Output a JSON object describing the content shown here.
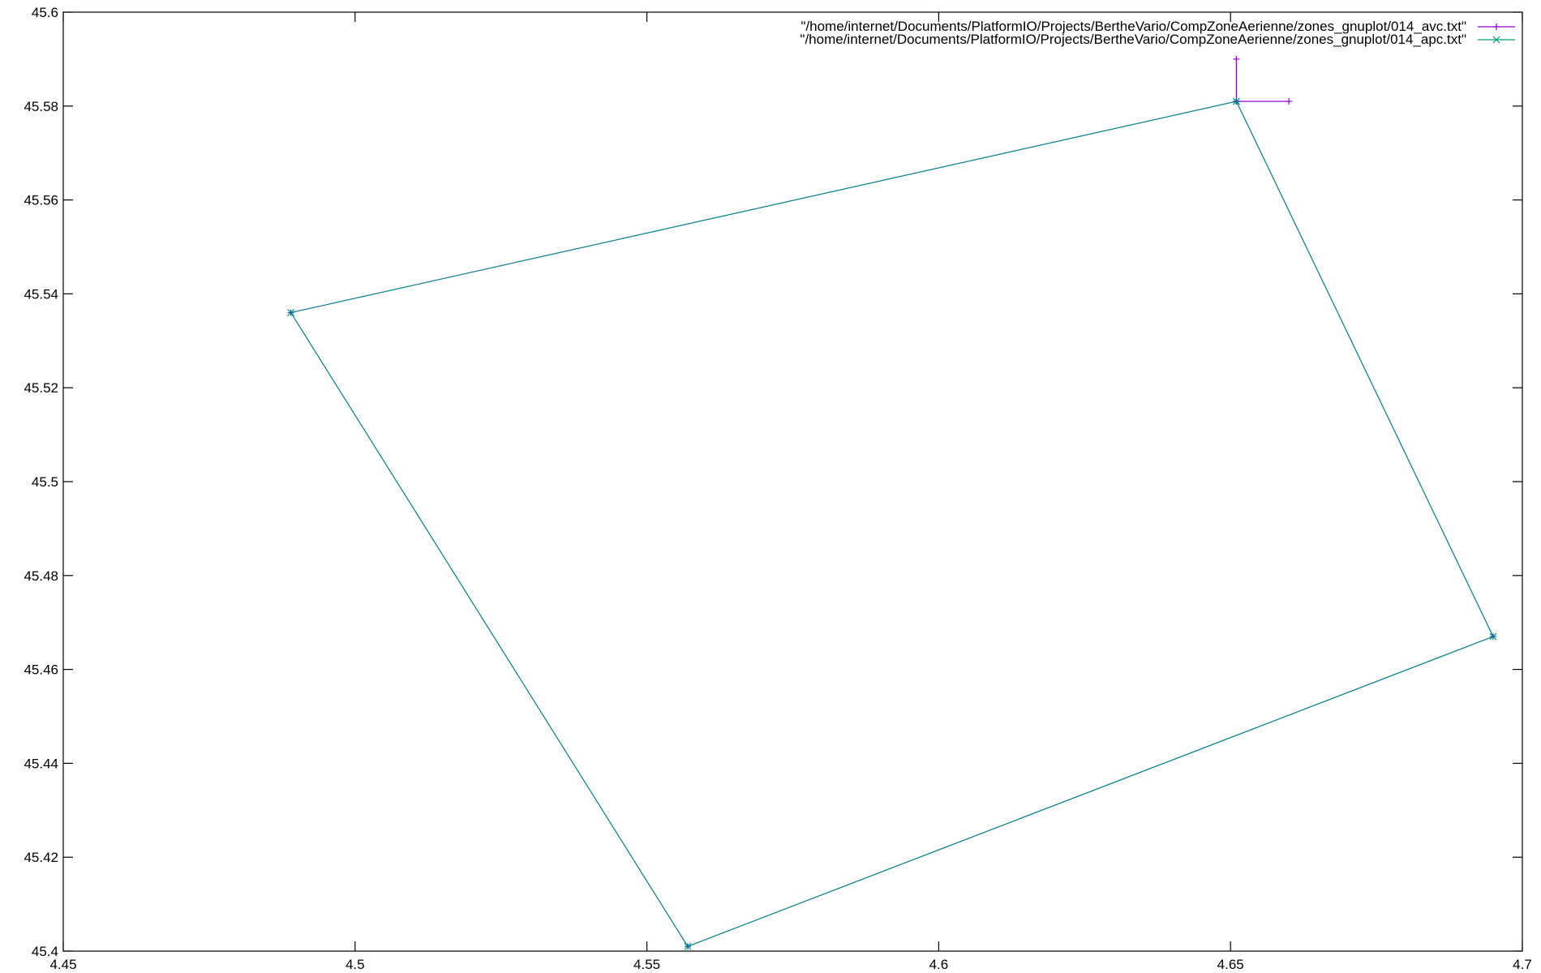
{
  "chart_data": {
    "type": "line",
    "title": "",
    "xlabel": "",
    "ylabel": "",
    "xlim": [
      4.45,
      4.7
    ],
    "ylim": [
      45.4,
      45.6
    ],
    "x_ticks": [
      "4.45",
      "4.5",
      "4.55",
      "4.6",
      "4.65",
      "4.7"
    ],
    "y_ticks": [
      "45.4",
      "45.42",
      "45.44",
      "45.46",
      "45.48",
      "45.5",
      "45.52",
      "45.54",
      "45.56",
      "45.58",
      "45.6"
    ],
    "grid": false,
    "legend_position": "top-right",
    "series": [
      {
        "name": "\"/home/internet/Documents/PlatformIO/Projects/BertheVario/CompZoneAerienne/zones_gnuplot/014_avc.txt\"",
        "color": "#9400d3",
        "marker": "plus",
        "segments": [
          [
            [
              4.651,
              45.581
            ],
            [
              4.651,
              45.59
            ]
          ],
          [
            [
              4.651,
              45.581
            ],
            [
              4.66,
              45.581
            ]
          ]
        ]
      },
      {
        "name": "\"/home/internet/Documents/PlatformIO/Projects/BertheVario/CompZoneAerienne/zones_gnuplot/014_apc.txt\"",
        "color": "#009e73",
        "marker": "x",
        "segments": [
          [
            [
              4.651,
              45.581
            ],
            [
              4.489,
              45.536
            ],
            [
              4.557,
              45.401
            ],
            [
              4.695,
              45.467
            ],
            [
              4.651,
              45.581
            ]
          ]
        ]
      }
    ],
    "overlay_color": "#1f5fa8"
  }
}
